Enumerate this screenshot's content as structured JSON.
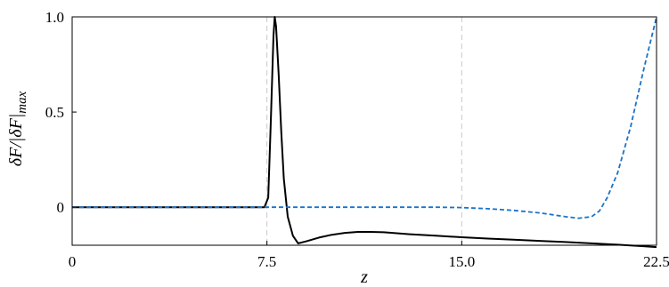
{
  "chart_data": {
    "type": "line",
    "xlabel": "z",
    "ylabel": "δF/|δF|max",
    "ylabel_parts": {
      "main": "δF/|δF|",
      "sub": "max"
    },
    "xlim": [
      0,
      22.5
    ],
    "ylim": [
      -0.2,
      1.0
    ],
    "x_ticks": [
      0,
      7.5,
      15.0,
      22.5
    ],
    "x_tick_labels": [
      "0",
      "7.5",
      "15.0",
      "22.5"
    ],
    "y_ticks": [
      0,
      0.5,
      1.0
    ],
    "y_tick_labels": [
      "0",
      "0.5",
      "1.0"
    ],
    "vertical_reference_lines": [
      7.5,
      15.0
    ],
    "grid": false,
    "series": [
      {
        "style": "solid",
        "color": "#000000",
        "x": [
          0,
          7.4,
          7.55,
          7.65,
          7.75,
          7.8,
          7.85,
          7.95,
          8.05,
          8.15,
          8.3,
          8.5,
          8.7,
          9.0,
          9.5,
          10.0,
          10.5,
          11.0,
          11.5,
          12.0,
          12.5,
          13.0,
          14.0,
          15.0,
          16.0,
          17.0,
          18.0,
          19.0,
          20.0,
          21.0,
          22.0,
          22.5
        ],
        "y": [
          0,
          0,
          0.05,
          0.45,
          0.9,
          1.0,
          0.95,
          0.7,
          0.4,
          0.15,
          -0.05,
          -0.15,
          -0.19,
          -0.18,
          -0.16,
          -0.145,
          -0.135,
          -0.13,
          -0.13,
          -0.132,
          -0.137,
          -0.142,
          -0.15,
          -0.158,
          -0.165,
          -0.171,
          -0.177,
          -0.183,
          -0.19,
          -0.197,
          -0.205,
          -0.21
        ]
      },
      {
        "style": "dashed",
        "color": "#1a73c9",
        "x": [
          0,
          14.0,
          15.0,
          16.0,
          17.0,
          18.0,
          18.5,
          19.0,
          19.5,
          20.0,
          20.3,
          20.6,
          21.0,
          21.5,
          22.0,
          22.5
        ],
        "y": [
          0,
          0,
          -0.002,
          -0.008,
          -0.017,
          -0.03,
          -0.04,
          -0.05,
          -0.058,
          -0.05,
          -0.02,
          0.05,
          0.18,
          0.42,
          0.72,
          1.0
        ]
      }
    ]
  }
}
